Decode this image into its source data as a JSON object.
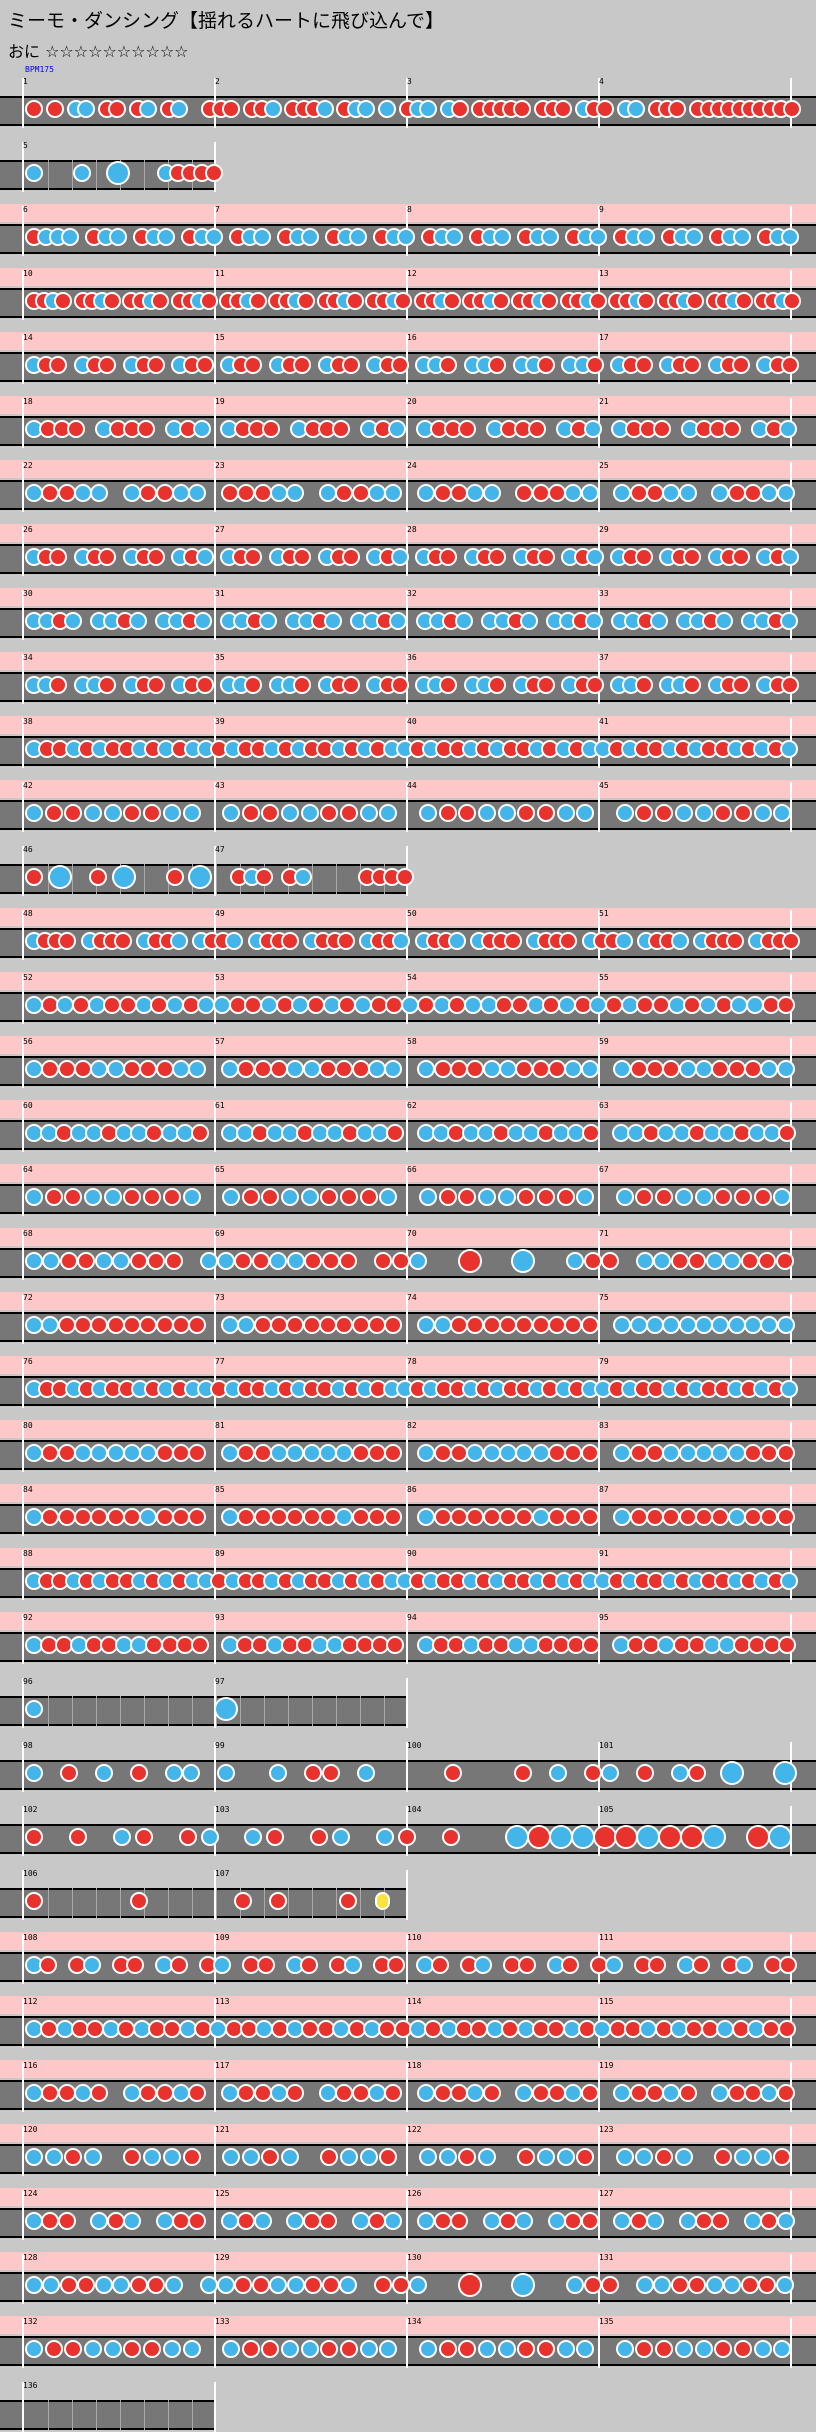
{
  "header": {
    "title": "ミーモ・ダンシング【揺れるハートに飛び込んで】",
    "difficulty_line": "おに ☆☆☆☆☆☆☆☆☆☆"
  },
  "bpm_label": "BPM175",
  "colors": {
    "don": "#e8322d",
    "ka": "#43b5e8",
    "roll": "#f8e43c",
    "gogo": "#ffc8c8",
    "lane": "#777777",
    "background": "#c8c8c8"
  },
  "note_legend": {
    "d": "don",
    "k": "ka",
    "D": "big don",
    "K": "big ka",
    "y": "roll"
  },
  "chart_data": {
    "type": "table",
    "title": "ミーモ・ダンシング【揺れるハートに飛び込んで】",
    "bpm": 175,
    "rows": [
      {
        "first_measure": 1,
        "measures": 4,
        "gogo": false,
        "notes": "d.d.kk.dd.dk.dk..ddd.ddk.dddk.dkk.k.dkk.kd.ddddd.ddd.kdd.kk.ddd.dddddddddd"
      },
      {
        "first_measure": 5,
        "measures": 1,
        "gogo": false,
        "notes": "k...k..K...kdddd"
      },
      {
        "first_measure": 6,
        "measures": 4,
        "gogo": true,
        "notes": "dkkk.dkk.dkk.dkk.dkk.dkk.dkk.dkk.dkk.dkk.dkk.dkk.dkk.dkk.dkk.dkk"
      },
      {
        "first_measure": 10,
        "measures": 4,
        "gogo": true,
        "notes": "ddkd.ddkd.ddkd.ddkd.ddkd.ddkd.ddkd.ddkd.ddkd.ddkd.ddkd.ddkd.ddkd.ddkd.ddkd.ddkd"
      },
      {
        "first_measure": 14,
        "measures": 4,
        "gogo": true,
        "notes": "kdd.kdd.kdd.kdd.kdd.kdd.kdd.kdd.kkd.kkd.kkd.kkd.kdd.kdd.kdd.kdd"
      },
      {
        "first_measure": 18,
        "measures": 4,
        "gogo": true,
        "notes": "kddd.kddd.kdk.kddd.kddd.kdk.kddd.kddd.kdk.kddd.kddd.kdk"
      },
      {
        "first_measure": 22,
        "measures": 4,
        "gogo": true,
        "notes": "kddkk.kddkk.dddkk.kddkk.kddkk.dddkk.kddkk.kddkk"
      },
      {
        "first_measure": 26,
        "measures": 4,
        "gogo": true,
        "notes": "kdd.kdd.kdd.kdk.kdd.kdd.kdd.kdk.kdd.kdd.kdd.kdk.kdd.kdd.kdd.kdk"
      },
      {
        "first_measure": 30,
        "measures": 4,
        "gogo": true,
        "notes": "kkdk.kkdk.kkdk.kkdk.kkdk.kkdk.kkdk.kkdk.kkdk.kkdk.kkdk.kkdk"
      },
      {
        "first_measure": 34,
        "measures": 4,
        "gogo": true,
        "notes": "kkd.kkd.kdd.kdd.kkd.kkd.kdd.kdd.kkd.kkd.kdd.kdd.kkd.kkd.kdd.kdd"
      },
      {
        "first_measure": 38,
        "measures": 4,
        "gogo": true,
        "notes": "kddkdkddkdkdkkdkddkdkddkdkdkkdkddkdkddkdkdkkdkddkdkddkdkdk"
      },
      {
        "first_measure": 42,
        "measures": 4,
        "gogo": true,
        "notes": "kddkkddkk.kddkkddkk.kddkkddkk.kddkkddkk"
      },
      {
        "first_measure": 46,
        "measures": 2,
        "gogo": false,
        "notes": "d.K..d.K...d.K..dkd.dk....dddd"
      },
      {
        "first_measure": 48,
        "measures": 4,
        "gogo": true,
        "notes": "kddd.kddd.kddk.kddk.kddd.kddd.kddk.kddk.kddd.kddd.kddk.kddk.kddd.kddd"
      },
      {
        "first_measure": 52,
        "measures": 4,
        "gogo": true,
        "notes": "kdkdkddkdkdkkddkdkdkdkddkdkdkkddkdkdkdkddkdkdkkdd"
      },
      {
        "first_measure": 56,
        "measures": 4,
        "gogo": true,
        "notes": "kdddkkdddkk.kdddkkdddkk.kdddkkdddkk.kdddkkdddkk"
      },
      {
        "first_measure": 60,
        "measures": 4,
        "gogo": true,
        "notes": "kkdkkdkkdkkd.kkdkkdkkdkkd.kkdkkdkkdkkd.kkdkkdkkdkkd"
      },
      {
        "first_measure": 64,
        "measures": 4,
        "gogo": true,
        "notes": "kddkkdddk.kddkkdddk.kddkkdddk.kddkkdddk"
      },
      {
        "first_measure": 68,
        "measures": 4,
        "gogo": true,
        "notes": "kkddkkddd.kkddkkddd.ddk..D..K..kdd.kkddkkddd"
      },
      {
        "first_measure": 72,
        "measures": 4,
        "gogo": true,
        "notes": "kkddddddddd.kkddddddddd.kkddddddddd.kkkkkkkkkkk"
      },
      {
        "first_measure": 76,
        "measures": 4,
        "gogo": true,
        "notes": "kddkdkddkdkdkkdkddkdkddkdkdkkdkddkdkddkdkdkkdkddkdkddkdkdk"
      },
      {
        "first_measure": 80,
        "measures": 4,
        "gogo": true,
        "notes": "kddkkkkkddd.kddkkkkkddd.kddkkkkkddd.kddkkkkkddd"
      },
      {
        "first_measure": 84,
        "measures": 4,
        "gogo": true,
        "notes": "kddddddkddd.kddddddkddd.kddddddkddd.kddddddkddd"
      },
      {
        "first_measure": 88,
        "measures": 4,
        "gogo": true,
        "notes": "kddkdkddkdkdkkdkddkdkddkdkdkkdkddkdkddkdkdkkdkddkdkddkdkdk"
      },
      {
        "first_measure": 92,
        "measures": 4,
        "gogo": true,
        "notes": "kddkddkkdddd.kddkddkkdddd.kddkddkkdddd.kddkddkkdddd"
      },
      {
        "first_measure": 96,
        "measures": 2,
        "gogo": false,
        "notes": "k...............K..............."
      },
      {
        "first_measure": 98,
        "measures": 4,
        "gogo": false,
        "notes": "k.d.k.d.kk.k..k.dd.k....d...d.k.dk.d.kd.K..K"
      },
      {
        "first_measure": 102,
        "measures": 4,
        "gogo": false,
        "notes": "d.d.kd.dk.kd.dk.kd.d..KDKKDDKDDK.DK"
      },
      {
        "first_measure": 106,
        "measures": 2,
        "gogo": false,
        "notes": "d..d..dd.dy"
      },
      {
        "first_measure": 108,
        "measures": 4,
        "gogo": true,
        "notes": "kd.dk.dd.kd.dk.dd.kd.dk.dd.kd.dk.dd.kd.dk.dd.kd.dk.dd"
      },
      {
        "first_measure": 112,
        "measures": 4,
        "gogo": true,
        "notes": "kdkddkdkddkdkddkdkddkdkddkdkddkdkddkdkddkdkddkdkdd"
      },
      {
        "first_measure": 116,
        "measures": 4,
        "gogo": true,
        "notes": "kddkd.kddkd.kddkd.kddkd.kddkd.kddkd.kddkd.kddkd"
      },
      {
        "first_measure": 120,
        "measures": 4,
        "gogo": true,
        "notes": "kkdk.dkkd.kkdk.dkkd.kkdk.dkkd.kkdk.dkkd"
      },
      {
        "first_measure": 124,
        "measures": 4,
        "gogo": true,
        "notes": "kdd.kdk.kdd.kdk.kdd.kdk.kdd.kdk.kdd.kdk.kdd.kdk"
      },
      {
        "first_measure": 128,
        "measures": 4,
        "gogo": true,
        "notes": "kkddkkddk.kkddkkddk.ddk..D..K..kdd.kkddkkddk"
      },
      {
        "first_measure": 132,
        "measures": 4,
        "gogo": true,
        "notes": "kddkkddkk.kddkkddkk.kddkkddkk.kddkkddkk"
      },
      {
        "first_measure": 136,
        "measures": 1,
        "gogo": false,
        "notes": ""
      }
    ]
  }
}
